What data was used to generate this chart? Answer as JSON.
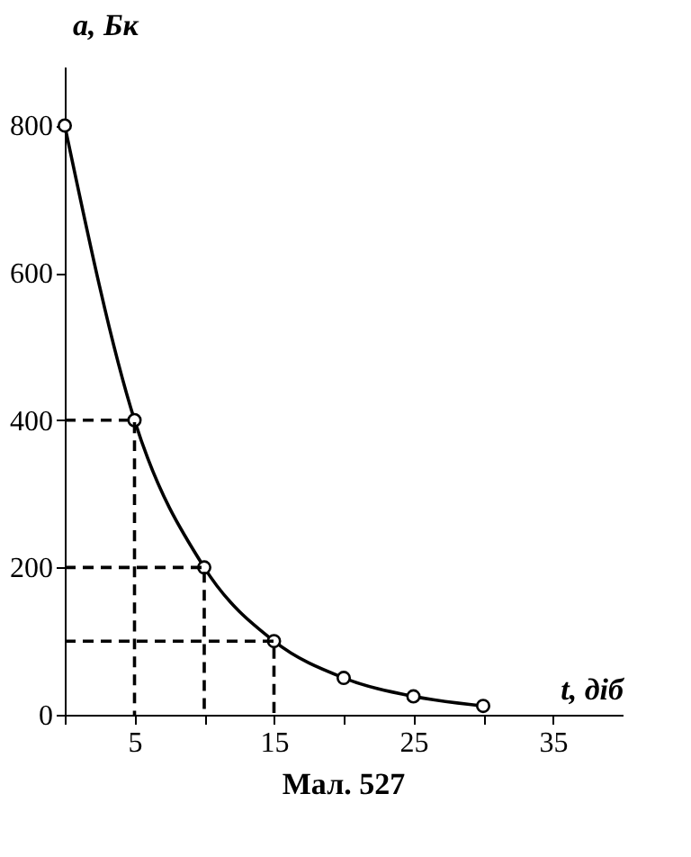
{
  "chart_data": {
    "type": "line",
    "xlabel": "t, діб",
    "ylabel": "a, Бк",
    "annotations": [
      "Мал. 527"
    ],
    "x": [
      0,
      5,
      10,
      15,
      20,
      25,
      30
    ],
    "series": [
      {
        "color": "#000000",
        "values": [
          800,
          400,
          200,
          100,
          50,
          25,
          12
        ],
        "marker": "circle",
        "line_style": "solid"
      },
      {
        "color": "#000000",
        "x": [
          0,
          5,
          5
        ],
        "values": [
          400,
          400,
          0
        ],
        "marker": "none",
        "line_style": "dashed"
      },
      {
        "color": "#000000",
        "x": [
          0,
          10,
          10
        ],
        "values": [
          200,
          200,
          0
        ],
        "marker": "none",
        "line_style": "dashed"
      },
      {
        "color": "#000000",
        "x": [
          0,
          15,
          15
        ],
        "values": [
          100,
          100,
          0
        ],
        "marker": "none",
        "line_style": "dashed"
      }
    ],
    "xlim": [
      0,
      40
    ],
    "ylim": [
      0,
      880
    ],
    "xticks": [
      {
        "value": 0,
        "label": null
      },
      5,
      {
        "value": 10,
        "label": null
      },
      15,
      {
        "value": 20,
        "label": null
      },
      25,
      {
        "value": 30,
        "label": null
      },
      35
    ],
    "yticks": [
      0,
      200,
      400,
      600,
      800
    ],
    "grid": false
  }
}
